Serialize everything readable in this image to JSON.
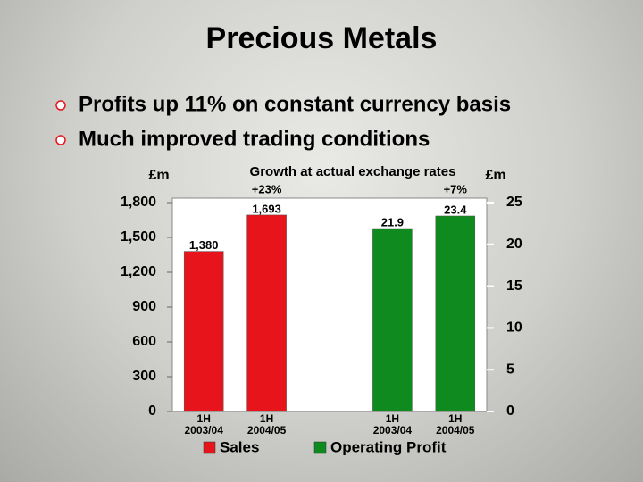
{
  "header": {
    "title": "Precious Metals",
    "bullets": [
      "Profits up 11% on constant currency basis",
      "Much improved trading conditions"
    ]
  },
  "chart_data": {
    "type": "bar",
    "title": "Growth at actual exchange rates",
    "y_label": "£m",
    "y2_label": "£m",
    "categories": [
      "1H 2003/04",
      "1H 2004/05",
      "1H 2003/04",
      "1H 2004/05"
    ],
    "series": [
      {
        "name": "Sales",
        "color": "#e8141b",
        "values": [
          1380,
          1693,
          null,
          null
        ],
        "value_labels": [
          "1,380",
          "1,693",
          null,
          null
        ]
      },
      {
        "name": "Operating Profit",
        "color": "#0f8a1e",
        "axis": "y2",
        "values": [
          null,
          null,
          21.9,
          23.4
        ]
      }
    ],
    "annotations": [
      "+23%",
      "+7%"
    ],
    "ylim": [
      0,
      1800
    ],
    "yticks": [
      0,
      300,
      600,
      900,
      {
        "value": 1200,
        "label": "1,200"
      },
      {
        "value": 1500,
        "label": "1,500"
      },
      {
        "value": 1800,
        "label": "1,800"
      }
    ],
    "y2lim": [
      0,
      25
    ],
    "y2ticks": [
      0,
      5,
      10,
      15,
      20,
      25
    ],
    "legend": "bottom"
  }
}
